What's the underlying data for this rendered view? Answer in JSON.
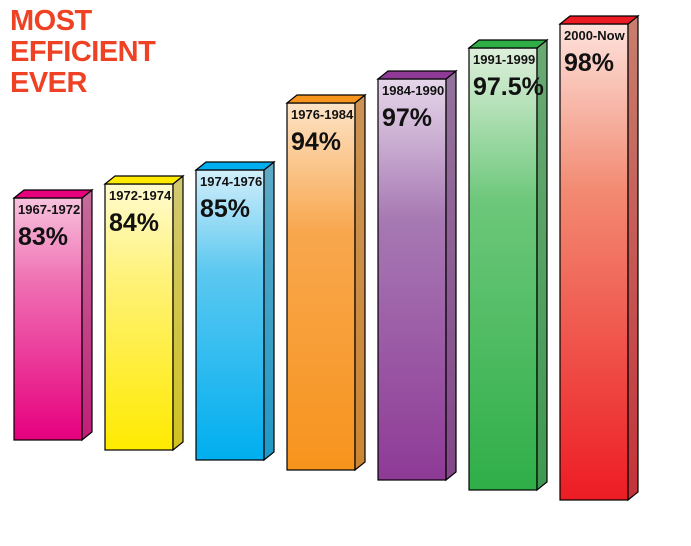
{
  "title": {
    "lines": [
      "MOST",
      "EFFICIENT",
      "EVER"
    ],
    "color": "#ef4123"
  },
  "chart_data": {
    "type": "bar",
    "style": "3d",
    "categories": [
      "1967-1972",
      "1972-1974",
      "1974-1976",
      "1976-1984",
      "1984-1990",
      "1991-1999",
      "2000-Now"
    ],
    "values": [
      83,
      84,
      85,
      94,
      97,
      97.5,
      98
    ],
    "value_labels": [
      "83%",
      "84%",
      "85%",
      "94%",
      "97%",
      "97.5%",
      "98%"
    ],
    "unit": "%",
    "colors": [
      {
        "top": "#f7c3dd",
        "mid": "#ef6fb3",
        "bottom": "#e6007e"
      },
      {
        "top": "#fffbcf",
        "mid": "#fff27a",
        "bottom": "#ffea00"
      },
      {
        "top": "#d2eefb",
        "mid": "#5cc8f0",
        "bottom": "#00aeef"
      },
      {
        "top": "#fde3c6",
        "mid": "#f8a74e",
        "bottom": "#f7941d"
      },
      {
        "top": "#e6d7ea",
        "mid": "#a779b3",
        "bottom": "#8e3a96"
      },
      {
        "top": "#dff0dc",
        "mid": "#6cc77a",
        "bottom": "#2fae48"
      },
      {
        "top": "#fde2dc",
        "mid": "#f28a72",
        "bottom": "#ed1c24"
      }
    ],
    "legend": "none",
    "grid": false
  }
}
